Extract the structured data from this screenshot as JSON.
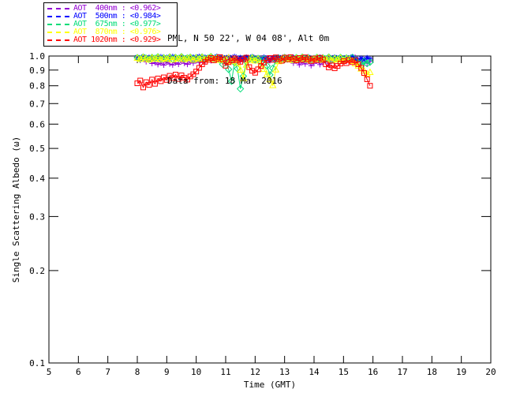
{
  "header": {
    "line1": "PML, N 50 22', W 04 08', Alt 0m",
    "line2": "Data from: 18 Mar 2016"
  },
  "chart_data": {
    "type": "scatter",
    "title": "",
    "xlabel": "Time (GMT)",
    "ylabel": "Single Scattering Albedo (ω)",
    "xlim": [
      5,
      20
    ],
    "ylim": [
      0.1,
      1.0
    ],
    "yscale": "log",
    "grid": false,
    "legend_position": "top-left",
    "xticks": [
      "5",
      "6",
      "7",
      "8",
      "9",
      "10",
      "11",
      "12",
      "13",
      "14",
      "15",
      "16",
      "17",
      "18",
      "19",
      "20"
    ],
    "yticks": [
      "1.0",
      "0.9",
      "0.8",
      "0.7",
      "0.6",
      "0.5",
      "0.4",
      "0.3",
      "0.2",
      "0.1"
    ],
    "axis_color": "#000000",
    "x": [
      8.0,
      8.1,
      8.2,
      8.3,
      8.4,
      8.5,
      8.6,
      8.7,
      8.8,
      8.9,
      9.0,
      9.1,
      9.2,
      9.3,
      9.4,
      9.5,
      9.6,
      9.7,
      9.8,
      9.9,
      10.0,
      10.1,
      10.2,
      10.3,
      10.4,
      10.5,
      10.6,
      10.7,
      10.8,
      10.9,
      11.0,
      11.1,
      11.2,
      11.3,
      11.4,
      11.5,
      11.6,
      11.7,
      11.8,
      11.9,
      12.0,
      12.1,
      12.2,
      12.3,
      12.4,
      12.5,
      12.6,
      12.7,
      12.8,
      12.9,
      13.0,
      13.1,
      13.2,
      13.3,
      13.4,
      13.5,
      13.6,
      13.7,
      13.8,
      13.9,
      14.0,
      14.1,
      14.2,
      14.3,
      14.4,
      14.5,
      14.6,
      14.7,
      14.8,
      14.9,
      15.0,
      15.1,
      15.2,
      15.3,
      15.4,
      15.5,
      15.6,
      15.7,
      15.8,
      15.9
    ],
    "series": [
      {
        "name": "AOT  400nm",
        "mean_label": "<0.962>",
        "color": "#9400D3",
        "marker": "plus",
        "values": [
          0.975,
          0.968,
          0.981,
          0.958,
          0.972,
          0.945,
          0.952,
          0.938,
          0.949,
          0.934,
          0.956,
          0.942,
          0.935,
          0.951,
          0.94,
          0.962,
          0.947,
          0.939,
          0.955,
          0.948,
          0.966,
          0.953,
          0.971,
          0.96,
          0.978,
          0.965,
          0.982,
          0.97,
          0.988,
          0.975,
          0.962,
          0.98,
          0.968,
          0.985,
          0.973,
          0.96,
          0.978,
          0.99,
          0.976,
          0.984,
          0.969,
          0.987,
          0.974,
          0.991,
          0.979,
          0.965,
          0.983,
          0.971,
          0.989,
          0.977,
          0.993,
          0.981,
          0.97,
          0.948,
          0.962,
          0.936,
          0.954,
          0.942,
          0.958,
          0.93,
          0.946,
          0.963,
          0.938,
          0.952,
          0.968,
          0.944,
          0.975,
          0.959,
          0.982,
          0.966,
          0.978,
          0.961,
          0.985,
          0.972,
          0.99,
          0.968,
          0.955,
          0.974,
          0.947,
          0.96
        ]
      },
      {
        "name": "AOT  500nm",
        "mean_label": "<0.984>",
        "color": "#0000FF",
        "marker": "asterisk",
        "values": [
          0.992,
          0.985,
          0.996,
          0.98,
          0.99,
          0.975,
          0.988,
          0.982,
          0.994,
          0.978,
          0.99,
          0.984,
          0.996,
          0.979,
          0.987,
          0.993,
          0.981,
          0.989,
          0.976,
          0.992,
          0.985,
          0.997,
          0.983,
          0.991,
          0.978,
          0.994,
          0.986,
          0.998,
          0.982,
          0.99,
          0.977,
          0.993,
          0.984,
          0.996,
          0.98,
          0.988,
          0.974,
          0.991,
          0.983,
          0.995,
          0.979,
          0.987,
          0.972,
          0.99,
          0.982,
          0.968,
          0.985,
          0.976,
          0.992,
          0.981,
          0.994,
          0.986,
          0.978,
          0.99,
          0.983,
          0.971,
          0.988,
          0.98,
          0.993,
          0.975,
          0.987,
          0.979,
          0.991,
          0.984,
          0.97,
          0.986,
          0.978,
          0.992,
          0.981,
          0.989,
          0.976,
          0.99,
          0.982,
          0.994,
          0.98,
          0.969,
          0.984,
          0.973,
          0.987,
          0.978
        ]
      },
      {
        "name": "AOT  675nm",
        "mean_label": "<0.977>",
        "color": "#00DC78",
        "marker": "diamond",
        "values": [
          0.988,
          0.979,
          0.992,
          0.984,
          0.975,
          0.99,
          0.981,
          0.994,
          0.977,
          0.987,
          0.98,
          0.993,
          0.976,
          0.989,
          0.982,
          0.995,
          0.978,
          0.986,
          0.991,
          0.974,
          0.988,
          0.98,
          0.993,
          0.977,
          0.985,
          0.996,
          0.979,
          0.987,
          0.972,
          0.94,
          0.968,
          0.905,
          0.828,
          0.951,
          0.91,
          0.782,
          0.86,
          0.958,
          0.975,
          0.988,
          0.97,
          0.982,
          0.955,
          0.978,
          0.93,
          0.868,
          0.912,
          0.965,
          0.984,
          0.976,
          0.99,
          0.978,
          0.985,
          0.972,
          0.988,
          0.979,
          0.992,
          0.975,
          0.986,
          0.969,
          0.981,
          0.99,
          0.974,
          0.987,
          0.978,
          0.992,
          0.97,
          0.983,
          0.976,
          0.989,
          0.972,
          0.985,
          0.978,
          0.99,
          0.965,
          0.95,
          0.93,
          0.962,
          0.945,
          0.955
        ]
      },
      {
        "name": "AOT  870nm",
        "mean_label": "<0.976>",
        "color": "#FFFF00",
        "marker": "triangle",
        "values": [
          0.985,
          0.976,
          0.99,
          0.981,
          0.972,
          0.987,
          0.978,
          0.991,
          0.974,
          0.984,
          0.977,
          0.99,
          0.972,
          0.986,
          0.979,
          0.992,
          0.975,
          0.983,
          0.988,
          0.971,
          0.985,
          0.977,
          0.99,
          0.974,
          0.982,
          0.993,
          0.976,
          0.984,
          0.969,
          0.98,
          0.973,
          0.987,
          0.96,
          0.978,
          0.948,
          0.9,
          0.845,
          0.935,
          0.97,
          0.983,
          0.965,
          0.978,
          0.94,
          0.905,
          0.87,
          0.838,
          0.802,
          0.902,
          0.96,
          0.972,
          0.986,
          0.974,
          0.981,
          0.968,
          0.984,
          0.975,
          0.988,
          0.971,
          0.982,
          0.965,
          0.977,
          0.986,
          0.97,
          0.983,
          0.974,
          0.988,
          0.966,
          0.979,
          0.972,
          0.985,
          0.968,
          0.981,
          0.974,
          0.962,
          0.944,
          0.928,
          0.908,
          0.893,
          0.875,
          0.885
        ]
      },
      {
        "name": "AOT 1020nm",
        "mean_label": "<0.929>",
        "color": "#FF0000",
        "marker": "square",
        "values": [
          0.815,
          0.832,
          0.79,
          0.822,
          0.805,
          0.838,
          0.812,
          0.845,
          0.828,
          0.852,
          0.836,
          0.862,
          0.848,
          0.87,
          0.842,
          0.865,
          0.85,
          0.838,
          0.858,
          0.872,
          0.89,
          0.915,
          0.94,
          0.958,
          0.972,
          0.985,
          0.968,
          0.98,
          0.992,
          0.975,
          0.93,
          0.955,
          0.968,
          0.982,
          0.97,
          0.958,
          0.975,
          0.988,
          0.92,
          0.895,
          0.882,
          0.905,
          0.928,
          0.952,
          0.97,
          0.985,
          0.972,
          0.99,
          0.978,
          0.965,
          0.988,
          0.975,
          0.992,
          0.98,
          0.968,
          0.985,
          0.973,
          0.99,
          0.977,
          0.964,
          0.982,
          0.97,
          0.987,
          0.975,
          0.94,
          0.918,
          0.932,
          0.912,
          0.928,
          0.945,
          0.962,
          0.948,
          0.97,
          0.955,
          0.968,
          0.94,
          0.915,
          0.88,
          0.84,
          0.8
        ]
      }
    ]
  }
}
